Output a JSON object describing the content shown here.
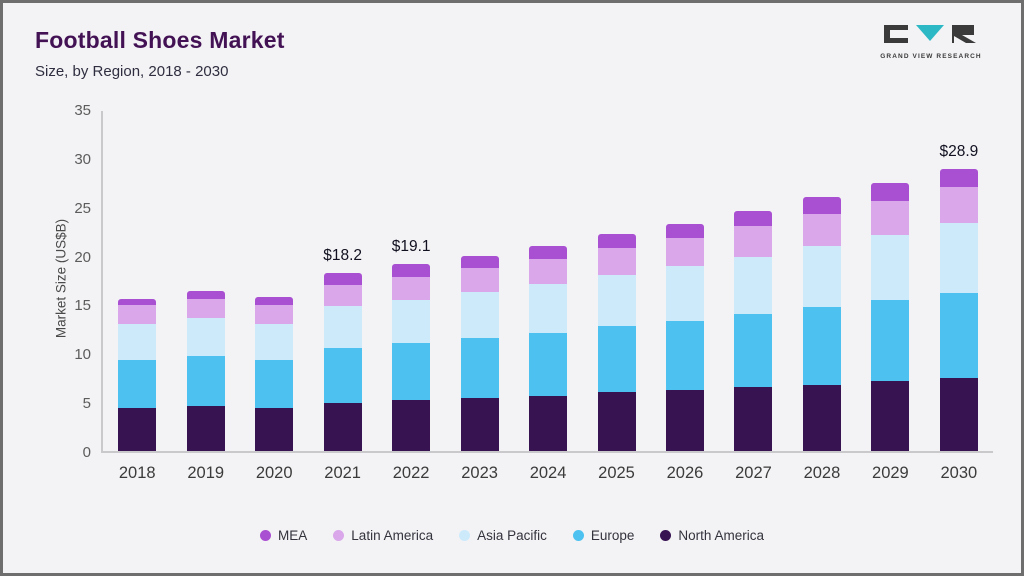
{
  "header": {
    "title": "Football Shoes Market",
    "subtitle": "Size, by Region, 2018 - 2030"
  },
  "logo": {
    "text": "GRAND VIEW RESEARCH",
    "accent_color": "#2cb8c5",
    "dark_color": "#3a3a3a"
  },
  "theme": {
    "background": "#f3f3f5",
    "title_color": "#431254",
    "axis_text_color": "#5c5c5c"
  },
  "chart_data": {
    "type": "bar",
    "stacked": true,
    "title": "Football Shoes Market Size, by Region, 2018 - 2030",
    "xlabel": "",
    "ylabel": "Market Size (US$B)",
    "ylim": [
      0,
      35
    ],
    "yticks": [
      0,
      5,
      10,
      15,
      20,
      25,
      30,
      35
    ],
    "grid": false,
    "legend_position": "bottom",
    "categories": [
      "2018",
      "2019",
      "2020",
      "2021",
      "2022",
      "2023",
      "2024",
      "2025",
      "2026",
      "2027",
      "2028",
      "2029",
      "2030"
    ],
    "series": [
      {
        "name": "North America",
        "color": "#371352",
        "values": [
          4.4,
          4.6,
          4.4,
          4.9,
          5.2,
          5.4,
          5.6,
          6.0,
          6.2,
          6.5,
          6.8,
          7.2,
          7.5
        ]
      },
      {
        "name": "Europe",
        "color": "#4dc2f1",
        "values": [
          4.9,
          5.1,
          4.9,
          5.6,
          5.9,
          6.2,
          6.5,
          6.8,
          7.1,
          7.5,
          7.9,
          8.2,
          8.7
        ]
      },
      {
        "name": "Asia Pacific",
        "color": "#cdeafb",
        "values": [
          3.7,
          3.9,
          3.7,
          4.3,
          4.4,
          4.7,
          5.0,
          5.2,
          5.6,
          5.9,
          6.3,
          6.7,
          7.1
        ]
      },
      {
        "name": "Latin America",
        "color": "#d9a7ea",
        "values": [
          1.9,
          2.0,
          1.9,
          2.2,
          2.3,
          2.4,
          2.6,
          2.8,
          2.9,
          3.1,
          3.3,
          3.5,
          3.7
        ]
      },
      {
        "name": "MEA",
        "color": "#a94fd1",
        "values": [
          0.7,
          0.8,
          0.9,
          1.2,
          1.3,
          1.3,
          1.3,
          1.4,
          1.4,
          1.6,
          1.7,
          1.8,
          1.9
        ]
      }
    ],
    "totals": [
      15.6,
      16.4,
      15.8,
      18.2,
      19.1,
      20.0,
      21.0,
      22.2,
      23.2,
      24.6,
      26.0,
      27.4,
      28.9
    ],
    "annotations": [
      {
        "category": "2021",
        "text": "$18.2"
      },
      {
        "category": "2022",
        "text": "$19.1"
      },
      {
        "category": "2030",
        "text": "$28.9"
      }
    ],
    "legend": [
      "MEA",
      "Latin America",
      "Asia Pacific",
      "Europe",
      "North America"
    ]
  }
}
